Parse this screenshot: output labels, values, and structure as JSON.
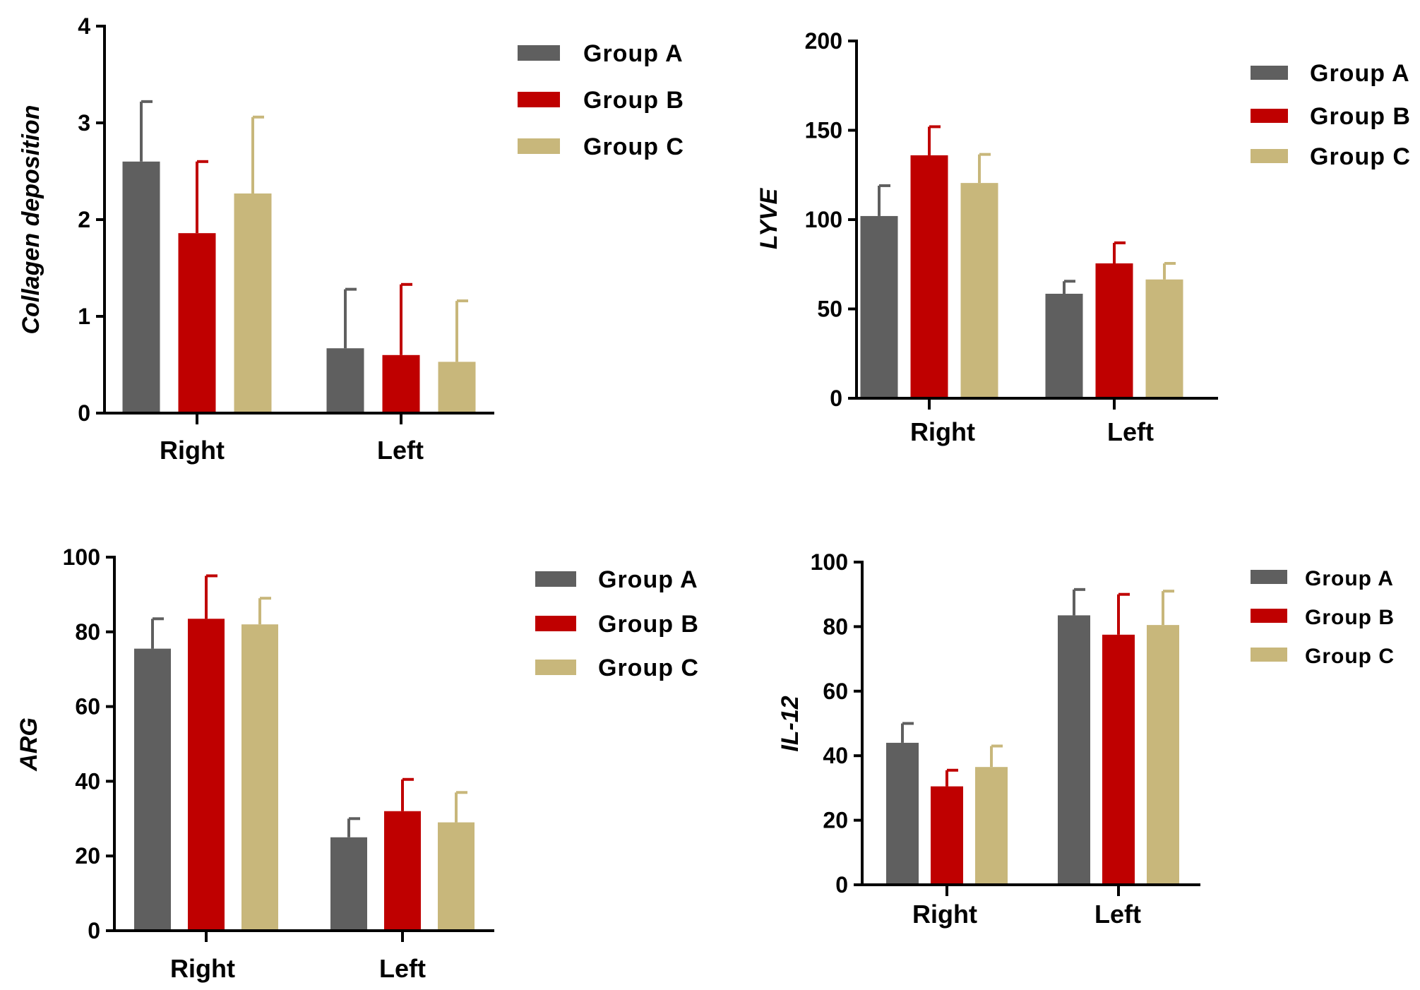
{
  "colors": {
    "group_a": "#5f5f5f",
    "group_b": "#bf0000",
    "group_c": "#c8b77b",
    "axis": "#000000"
  },
  "chart_data": [
    {
      "type": "bar",
      "xlabel": "",
      "ylabel": "Collagen deposition",
      "ylim": [
        0,
        4
      ],
      "yticks": [
        "0",
        "1",
        "2",
        "3",
        "4"
      ],
      "categories": [
        "Right",
        "Left"
      ],
      "legend_position": "top-right",
      "error_bars": true,
      "series": [
        {
          "name": "Group A",
          "values": [
            2.6,
            0.67
          ],
          "errors": [
            0.62,
            0.61
          ]
        },
        {
          "name": "Group B",
          "values": [
            1.86,
            0.6
          ],
          "errors": [
            0.74,
            0.73
          ]
        },
        {
          "name": "Group C",
          "values": [
            2.27,
            0.53
          ],
          "errors": [
            0.79,
            0.63
          ]
        }
      ]
    },
    {
      "type": "bar",
      "xlabel": "",
      "ylabel": "LYVE",
      "ylim": [
        0,
        200
      ],
      "yticks": [
        "0",
        "50",
        "100",
        "150",
        "200"
      ],
      "categories": [
        "Right",
        "Left"
      ],
      "legend_position": "top-right",
      "error_bars": true,
      "series": [
        {
          "name": "Group A",
          "values": [
            102,
            58.5
          ],
          "errors": [
            17,
            7
          ]
        },
        {
          "name": "Group B",
          "values": [
            136,
            75.5
          ],
          "errors": [
            16,
            11.5
          ]
        },
        {
          "name": "Group C",
          "values": [
            120.5,
            66.5
          ],
          "errors": [
            16,
            9
          ]
        }
      ]
    },
    {
      "type": "bar",
      "xlabel": "",
      "ylabel": "ARG",
      "ylim": [
        0,
        100
      ],
      "yticks": [
        "0",
        "20",
        "40",
        "60",
        "80",
        "100"
      ],
      "categories": [
        "Right",
        "Left"
      ],
      "legend_position": "top-right",
      "error_bars": true,
      "series": [
        {
          "name": "Group A",
          "values": [
            75.5,
            25
          ],
          "errors": [
            8,
            5
          ]
        },
        {
          "name": "Group B",
          "values": [
            83.5,
            32
          ],
          "errors": [
            11.5,
            8.5
          ]
        },
        {
          "name": "Group C",
          "values": [
            82,
            29
          ],
          "errors": [
            7,
            8
          ]
        }
      ]
    },
    {
      "type": "bar",
      "xlabel": "",
      "ylabel": "IL-12",
      "ylim": [
        0,
        100
      ],
      "yticks": [
        "0",
        "20",
        "40",
        "60",
        "80",
        "100"
      ],
      "categories": [
        "Right",
        "Left"
      ],
      "legend_position": "top-right",
      "error_bars": true,
      "series": [
        {
          "name": "Group A",
          "values": [
            44,
            83.5
          ],
          "errors": [
            6,
            8
          ]
        },
        {
          "name": "Group B",
          "values": [
            30.5,
            77.5
          ],
          "errors": [
            5,
            12.5
          ]
        },
        {
          "name": "Group C",
          "values": [
            36.5,
            80.5
          ],
          "errors": [
            6.5,
            10.5
          ]
        }
      ]
    }
  ]
}
